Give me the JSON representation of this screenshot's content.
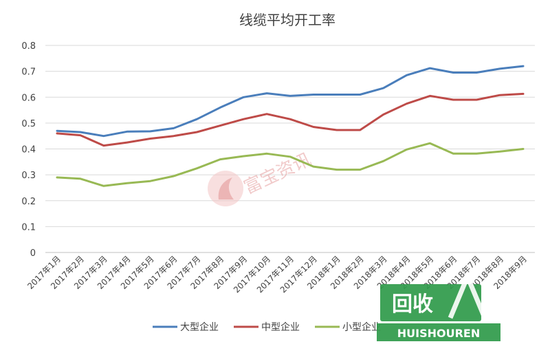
{
  "chart_data": {
    "type": "line",
    "title": "线缆平均开工率",
    "ylim": [
      0,
      0.8
    ],
    "yticks": [
      "0",
      "0.1",
      "0.2",
      "0.3",
      "0.4",
      "0.5",
      "0.6",
      "0.7",
      "0.8"
    ],
    "grid": true,
    "legend_position": "bottom",
    "categories": [
      "2017年1月",
      "2017年2月",
      "2017年3月",
      "2017年4月",
      "2017年5月",
      "2017年6月",
      "2017年7月",
      "2017年8月",
      "2017年9月",
      "2017年10月",
      "2017年11月",
      "2017年12月",
      "2018年1月",
      "2018年2月",
      "2018年3月",
      "2018年4月",
      "2018年5月",
      "2018年6月",
      "2018年7月",
      "2018年8月",
      "2018年9月"
    ],
    "series": [
      {
        "name": "大型企业",
        "color": "#4a7ebb",
        "values": [
          0.47,
          0.465,
          0.45,
          0.467,
          0.468,
          0.48,
          0.515,
          0.56,
          0.6,
          0.615,
          0.605,
          0.61,
          0.61,
          0.61,
          0.635,
          0.685,
          0.712,
          0.695,
          0.695,
          0.71,
          0.72
        ]
      },
      {
        "name": "中型企业",
        "color": "#be4b48",
        "values": [
          0.46,
          0.453,
          0.413,
          0.425,
          0.44,
          0.45,
          0.465,
          0.49,
          0.515,
          0.535,
          0.515,
          0.485,
          0.473,
          0.473,
          0.533,
          0.575,
          0.605,
          0.59,
          0.59,
          0.608,
          0.613
        ]
      },
      {
        "name": "小型企业",
        "color": "#98b954",
        "values": [
          0.29,
          0.285,
          0.257,
          0.268,
          0.276,
          0.295,
          0.325,
          0.36,
          0.372,
          0.382,
          0.37,
          0.332,
          0.32,
          0.32,
          0.353,
          0.398,
          0.422,
          0.382,
          0.382,
          0.39,
          0.4
        ]
      }
    ]
  },
  "watermark": {
    "text": "富宝资讯"
  },
  "logo": {
    "main": "回收",
    "sub": "HUISHOUREN"
  }
}
